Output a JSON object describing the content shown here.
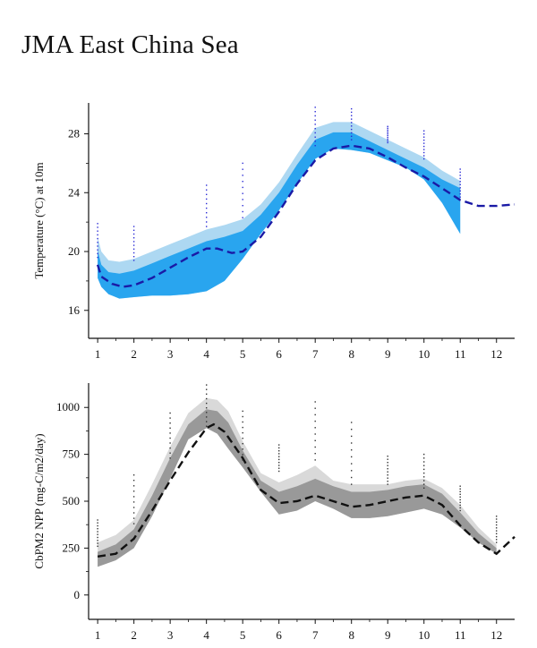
{
  "title": "JMA East China Sea",
  "chart_data": [
    {
      "type": "area",
      "ylabel": "Temperature (°C) at 10m",
      "xticks": [
        1,
        2,
        3,
        4,
        5,
        6,
        7,
        8,
        9,
        10,
        11,
        12
      ],
      "yticks": [
        16,
        20,
        24,
        28
      ],
      "xlim": [
        0.75,
        12.5
      ],
      "ylim": [
        14.1,
        30.1
      ],
      "colors": {
        "outer": "#add8f2",
        "inner": "#29a5ef",
        "mean": "#1a1aa6",
        "points": "#2b2bd6"
      },
      "outer_band": {
        "x": [
          1,
          1.1,
          1.3,
          1.6,
          2,
          2.5,
          3,
          3.5,
          4,
          4.5,
          5,
          5.5,
          6,
          6.5,
          7,
          7.5,
          8,
          8.5,
          9,
          9.5,
          10,
          10.5,
          11
        ],
        "lower": [
          18.2,
          17.6,
          17.1,
          16.8,
          16.9,
          17.0,
          17.0,
          17.1,
          17.3,
          18.0,
          19.5,
          21.2,
          22.8,
          24.6,
          26.3,
          27.0,
          26.9,
          26.7,
          26.2,
          25.7,
          24.9,
          23.3,
          21.2
        ],
        "upper": [
          21.0,
          20.0,
          19.4,
          19.3,
          19.5,
          20.0,
          20.5,
          21.0,
          21.5,
          21.8,
          22.2,
          23.2,
          24.7,
          26.6,
          28.4,
          28.8,
          28.8,
          28.2,
          27.6,
          27.0,
          26.4,
          25.5,
          24.8
        ]
      },
      "inner_band": {
        "x": [
          1,
          1.1,
          1.3,
          1.6,
          2,
          2.5,
          3,
          3.5,
          4,
          4.5,
          5,
          5.5,
          6,
          6.5,
          7,
          7.5,
          8,
          8.5,
          9,
          9.5,
          10,
          10.5,
          11
        ],
        "lower": [
          18.2,
          17.6,
          17.1,
          16.8,
          16.9,
          17.0,
          17.0,
          17.1,
          17.3,
          18.0,
          19.5,
          21.2,
          22.8,
          24.6,
          26.3,
          27.0,
          26.9,
          26.7,
          26.2,
          25.7,
          24.9,
          23.3,
          21.2
        ],
        "upper": [
          20.1,
          19.1,
          18.6,
          18.5,
          18.7,
          19.2,
          19.7,
          20.2,
          20.7,
          21.0,
          21.4,
          22.5,
          24.0,
          25.9,
          27.6,
          28.1,
          28.1,
          27.5,
          26.9,
          26.3,
          25.7,
          24.9,
          24.3
        ]
      },
      "mean": {
        "x": [
          1,
          1.1,
          1.4,
          1.7,
          2,
          2.5,
          3,
          3.5,
          4,
          4.3,
          4.7,
          5,
          5.5,
          6,
          6.5,
          7,
          7.5,
          8,
          8.5,
          9,
          9.5,
          10,
          10.5,
          11,
          11.5,
          12,
          12.5
        ],
        "y": [
          19.1,
          18.3,
          17.8,
          17.6,
          17.7,
          18.2,
          18.9,
          19.6,
          20.2,
          20.2,
          19.9,
          20.0,
          21.0,
          22.7,
          24.6,
          26.2,
          27.0,
          27.2,
          27.0,
          26.4,
          25.7,
          25.1,
          24.3,
          23.5,
          23.1,
          23.1,
          23.2
        ]
      },
      "points": {
        "x": [
          1,
          2,
          4,
          5,
          7,
          8,
          9,
          10,
          11
        ],
        "ymin": [
          19.6,
          19.4,
          21.7,
          22.3,
          27.2,
          27.6,
          27.4,
          26.3,
          23.7
        ],
        "ymax": [
          21.9,
          21.7,
          24.5,
          26.0,
          29.8,
          29.7,
          28.5,
          28.2,
          25.6
        ]
      }
    },
    {
      "type": "area",
      "ylabel": "CbPM2 NPP (mg-C/m2/day)",
      "xticks": [
        1,
        2,
        3,
        4,
        5,
        6,
        7,
        8,
        9,
        10,
        11,
        12
      ],
      "yticks": [
        0,
        250,
        500,
        750,
        1000
      ],
      "xlim": [
        0.75,
        12.5
      ],
      "ylim": [
        -130,
        1130
      ],
      "colors": {
        "outer": "#d9d9d9",
        "inner": "#999999",
        "mean": "#111111",
        "points": "#333333"
      },
      "outer_band": {
        "x": [
          1,
          1.5,
          2,
          2.5,
          3,
          3.5,
          4,
          4.3,
          4.6,
          5,
          5.5,
          6,
          6.5,
          7,
          7.5,
          8,
          8.5,
          9,
          9.5,
          10,
          10.5,
          11,
          11.5,
          12
        ],
        "lower": [
          150,
          185,
          250,
          420,
          620,
          830,
          890,
          860,
          780,
          680,
          550,
          430,
          450,
          500,
          460,
          410,
          410,
          420,
          440,
          460,
          430,
          360,
          280,
          220
        ],
        "upper": [
          280,
          320,
          400,
          590,
          790,
          970,
          1050,
          1040,
          980,
          820,
          650,
          600,
          640,
          690,
          610,
          590,
          590,
          590,
          610,
          620,
          570,
          480,
          360,
          270
        ]
      },
      "inner_band": {
        "x": [
          1,
          1.5,
          2,
          2.5,
          3,
          3.5,
          4,
          4.3,
          4.6,
          5,
          5.5,
          6,
          6.5,
          7,
          7.5,
          8,
          8.5,
          9,
          9.5,
          10,
          10.5,
          11,
          11.5,
          12
        ],
        "lower": [
          150,
          185,
          250,
          420,
          620,
          830,
          890,
          860,
          780,
          680,
          550,
          430,
          450,
          500,
          460,
          410,
          410,
          420,
          440,
          460,
          430,
          360,
          280,
          220
        ],
        "upper": [
          230,
          270,
          350,
          530,
          730,
          910,
          990,
          980,
          920,
          770,
          610,
          550,
          580,
          620,
          580,
          550,
          550,
          560,
          580,
          590,
          540,
          440,
          330,
          250
        ]
      },
      "mean": {
        "x": [
          1,
          1.5,
          2,
          2.5,
          3,
          3.5,
          4,
          4.2,
          4.5,
          5,
          5.5,
          6,
          6.5,
          7,
          7.5,
          8,
          8.5,
          9,
          9.5,
          10,
          10.5,
          11,
          11.5,
          12,
          12.5
        ],
        "y": [
          205,
          220,
          300,
          450,
          610,
          760,
          890,
          910,
          870,
          730,
          560,
          490,
          500,
          530,
          500,
          470,
          480,
          500,
          520,
          530,
          480,
          370,
          280,
          220,
          310
        ]
      },
      "points": {
        "x": [
          1,
          2,
          3,
          4,
          5,
          6,
          7,
          8,
          9,
          10,
          11,
          12
        ],
        "ymin": [
          260,
          380,
          730,
          900,
          720,
          660,
          720,
          590,
          590,
          570,
          450,
          280
        ],
        "ymax": [
          400,
          640,
          970,
          1120,
          980,
          800,
          1030,
          920,
          740,
          750,
          580,
          420
        ]
      }
    }
  ]
}
